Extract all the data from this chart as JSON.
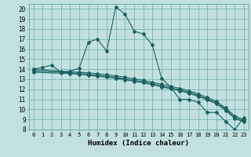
{
  "title": "",
  "xlabel": "Humidex (Indice chaleur)",
  "bg_color": "#c2e0e0",
  "grid_color": "#6aacac",
  "line_color": "#1a6060",
  "xlim": [
    -0.5,
    23.5
  ],
  "ylim": [
    8,
    20.5
  ],
  "xticks": [
    0,
    1,
    2,
    3,
    4,
    5,
    6,
    7,
    8,
    9,
    10,
    11,
    12,
    13,
    14,
    15,
    16,
    17,
    18,
    19,
    20,
    21,
    22,
    23
  ],
  "yticks": [
    8,
    9,
    10,
    11,
    12,
    13,
    14,
    15,
    16,
    17,
    18,
    19,
    20
  ],
  "line1_x": [
    0,
    1,
    2,
    3,
    4,
    5,
    6,
    7,
    8,
    9,
    10,
    11,
    12,
    13,
    14,
    15,
    16,
    17,
    18,
    19,
    20,
    21,
    22,
    23
  ],
  "line1_y": [
    14.0,
    14.2,
    14.4,
    13.7,
    13.8,
    14.1,
    16.7,
    17.0,
    15.8,
    20.2,
    19.5,
    17.8,
    17.5,
    16.4,
    13.1,
    12.2,
    11.0,
    11.0,
    10.7,
    9.7,
    9.7,
    8.8,
    8.0,
    9.2
  ],
  "line2_x": [
    0,
    3,
    4,
    5,
    6,
    7,
    8,
    9,
    10,
    11,
    12,
    13,
    14,
    15,
    16,
    17,
    18,
    19,
    20,
    21,
    22,
    23
  ],
  "line2_y": [
    14.0,
    13.8,
    13.75,
    13.7,
    13.65,
    13.55,
    13.45,
    13.35,
    13.2,
    13.05,
    12.9,
    12.7,
    12.5,
    12.3,
    12.1,
    11.85,
    11.55,
    11.2,
    10.8,
    10.15,
    9.35,
    9.0
  ],
  "line3_x": [
    0,
    3,
    4,
    5,
    6,
    7,
    8,
    9,
    10,
    11,
    12,
    13,
    14,
    15,
    16,
    17,
    18,
    19,
    20,
    21,
    22,
    23
  ],
  "line3_y": [
    13.85,
    13.7,
    13.65,
    13.6,
    13.5,
    13.4,
    13.3,
    13.2,
    13.05,
    12.9,
    12.75,
    12.55,
    12.35,
    12.15,
    11.95,
    11.7,
    11.4,
    11.05,
    10.65,
    10.0,
    9.2,
    8.85
  ],
  "line4_x": [
    0,
    3,
    4,
    5,
    6,
    7,
    8,
    9,
    10,
    11,
    12,
    13,
    14,
    15,
    16,
    17,
    18,
    19,
    20,
    21,
    22,
    23
  ],
  "line4_y": [
    13.7,
    13.6,
    13.55,
    13.5,
    13.4,
    13.3,
    13.2,
    13.1,
    12.95,
    12.8,
    12.65,
    12.45,
    12.25,
    12.05,
    11.85,
    11.6,
    11.3,
    10.95,
    10.55,
    9.9,
    9.1,
    8.75
  ]
}
